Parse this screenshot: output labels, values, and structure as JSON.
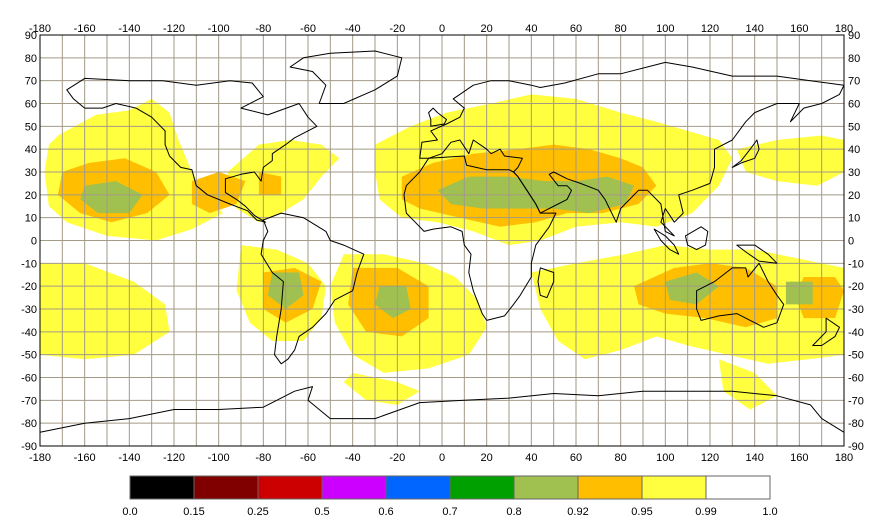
{
  "map": {
    "x_ticks": [
      "-180",
      "-160",
      "-140",
      "-120",
      "-100",
      "-80",
      "-60",
      "-40",
      "-20",
      "0",
      "20",
      "40",
      "60",
      "80",
      "100",
      "120",
      "140",
      "160",
      "180"
    ],
    "y_ticks": [
      "90",
      "80",
      "70",
      "60",
      "50",
      "40",
      "30",
      "20",
      "10",
      "0",
      "-10",
      "-20",
      "-30",
      "-40",
      "-50",
      "-60",
      "-70",
      "-80",
      "-90"
    ],
    "lon_range": [
      -180,
      180
    ],
    "lat_range": [
      -90,
      90
    ],
    "grid": true,
    "colors": {
      "grid": "#a39a87",
      "coast": "#000000",
      "background": "#ffffff"
    }
  },
  "legend": {
    "swatches": [
      {
        "color": "#000000"
      },
      {
        "color": "#800000"
      },
      {
        "color": "#cc0000"
      },
      {
        "color": "#cc00ff"
      },
      {
        "color": "#0066ff"
      },
      {
        "color": "#00a000"
      },
      {
        "color": "#a0c050"
      },
      {
        "color": "#ffbf00"
      },
      {
        "color": "#ffff40"
      },
      {
        "color": "#ffffff"
      }
    ],
    "labels": [
      "0.0",
      "0.15",
      "0.25",
      "0.5",
      "0.6",
      "0.7",
      "0.8",
      "0.92",
      "0.95",
      "0.99",
      "1.0"
    ]
  },
  "regions": {
    "yellow": "#ffff40",
    "orange": "#ffbf00",
    "green": "#a0c050"
  }
}
